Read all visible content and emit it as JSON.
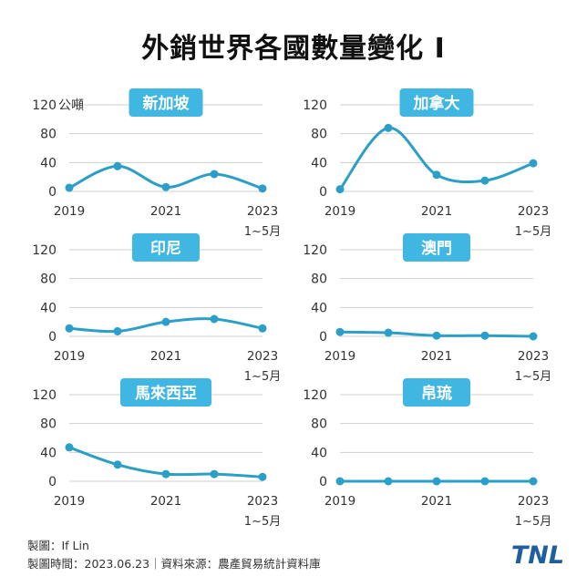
{
  "title": "外銷世界各國數量變化 I",
  "footer": {
    "maker": "製圖：If Lin",
    "info": "製圖時間：2023.06.23｜資料來源：農產貿易統計資料庫"
  },
  "logo": {
    "text": "TNL"
  },
  "colors": {
    "line": "#2b9fc7",
    "badge": "#40b6e3",
    "grid": "#cfcfcf",
    "axis": "#333333"
  },
  "chart_data": [
    {
      "type": "line",
      "title": "新加坡",
      "ylabel": "公噸",
      "x_ticks": [
        "2019",
        "2021",
        "2023"
      ],
      "x_tick_extra": "1~5月",
      "y_ticks": [
        0,
        40,
        80,
        120
      ],
      "ylim": [
        0,
        120
      ],
      "x": [
        "2019",
        "2020",
        "2021",
        "2022",
        "2023"
      ],
      "values": [
        5,
        35,
        6,
        24,
        4
      ]
    },
    {
      "type": "line",
      "title": "加拿大",
      "ylabel": "",
      "x_ticks": [
        "2019",
        "2021",
        "2023"
      ],
      "x_tick_extra": "1~5月",
      "y_ticks": [
        0,
        40,
        80,
        120
      ],
      "ylim": [
        0,
        120
      ],
      "x": [
        "2019",
        "2020",
        "2021",
        "2022",
        "2023"
      ],
      "values": [
        3,
        88,
        23,
        15,
        39
      ]
    },
    {
      "type": "line",
      "title": "印尼",
      "ylabel": "",
      "x_ticks": [
        "2019",
        "2021",
        "2023"
      ],
      "x_tick_extra": "1~5月",
      "y_ticks": [
        0,
        40,
        80,
        120
      ],
      "ylim": [
        0,
        120
      ],
      "x": [
        "2019",
        "2020",
        "2021",
        "2022",
        "2023"
      ],
      "values": [
        11,
        7,
        20,
        24,
        11
      ]
    },
    {
      "type": "line",
      "title": "澳門",
      "ylabel": "",
      "x_ticks": [
        "2019",
        "2021",
        "2023"
      ],
      "x_tick_extra": "1~5月",
      "y_ticks": [
        0,
        40,
        80,
        120
      ],
      "ylim": [
        0,
        120
      ],
      "x": [
        "2019",
        "2020",
        "2021",
        "2022",
        "2023"
      ],
      "values": [
        6,
        5,
        1,
        1,
        0
      ]
    },
    {
      "type": "line",
      "title": "馬來西亞",
      "ylabel": "",
      "x_ticks": [
        "2019",
        "2021",
        "2023"
      ],
      "x_tick_extra": "1~5月",
      "y_ticks": [
        0,
        40,
        80,
        120
      ],
      "ylim": [
        0,
        120
      ],
      "x": [
        "2019",
        "2020",
        "2021",
        "2022",
        "2023"
      ],
      "values": [
        47,
        23,
        10,
        10,
        6
      ]
    },
    {
      "type": "line",
      "title": "帛琉",
      "ylabel": "",
      "x_ticks": [
        "2019",
        "2021",
        "2023"
      ],
      "x_tick_extra": "1~5月",
      "y_ticks": [
        0,
        40,
        80,
        120
      ],
      "ylim": [
        0,
        120
      ],
      "x": [
        "2019",
        "2020",
        "2021",
        "2022",
        "2023"
      ],
      "values": [
        0,
        0,
        0,
        0,
        0
      ]
    }
  ]
}
